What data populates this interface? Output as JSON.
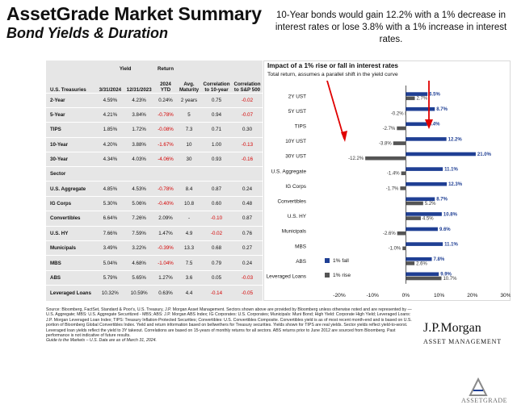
{
  "page": {
    "title": "AssetGrade Market Summary",
    "subtitle": "Bond Yields & Duration",
    "note": "10-Year bonds would gain 12.2% with a 1% decrease in interest rates or lose 3.8% with a 1% increase in interest rates.",
    "source": "Source: Bloomberg, FactSet, Standard & Poor's, U.S. Treasury, J.P. Morgan Asset Management. Sectors shown above are provided by Bloomberg unless otherwise noted and are represented by — U.S. Aggregate; MBS: U.S. Aggregate Securitized - MBS; ABS: J.P. Morgan ABS Index; IG Corporates: U.S. Corporates; Municipals: Muni Bond; High Yield: Corporate High Yield; Leveraged Loans: J.P. Morgan Leveraged Loan Index; TIPS: Treasury Inflation-Protected Securities; Convertibles: U.S. Convertibles Composite. Convertibles yield is as of most recent month-end and is based on U.S. portion of Bloomberg Global Convertibles Index. Yield and return information based on bellwethers for Treasury securities. Yields shown for TIPS are real yields. Sector yields reflect yield-to-worst. Leveraged loan yields reflect the yield to 3Y takeout. Correlations are based on 15-years of monthly returns for all sectors. ABS returns prior to June 2012 are sourced from Bloomberg. Past performance is not indicative of future results.",
    "guide": "Guide to the Markets – U.S. Data are as of March 31, 2024.",
    "brand": "J.P.Morgan",
    "brand_sub": "ASSET MANAGEMENT",
    "logo_text": "ASSETGRADE"
  },
  "table": {
    "header": {
      "yield": "Yield",
      "return": "Return",
      "group1": "U.S. Treasuries",
      "d1": "3/31/2024",
      "d2": "12/31/2023",
      "ytd": "2024 YTD",
      "maturity": "Avg. Maturity",
      "corr10": "Correlation to 10-year",
      "corrsp": "Correlation to S&P 500",
      "group2": "Sector"
    },
    "treasuries": [
      {
        "name": "2-Year",
        "y1": "4.59%",
        "y2": "4.23%",
        "ret": "0.24%",
        "mat": "2 years",
        "c10": "0.75",
        "csp": "-0.02"
      },
      {
        "name": "5-Year",
        "y1": "4.21%",
        "y2": "3.84%",
        "ret": "-0.78%",
        "mat": "5",
        "c10": "0.94",
        "csp": "-0.07"
      },
      {
        "name": "TIPS",
        "y1": "1.85%",
        "y2": "1.72%",
        "ret": "-0.08%",
        "mat": "7.3",
        "c10": "0.71",
        "csp": "0.30"
      },
      {
        "name": "10-Year",
        "y1": "4.20%",
        "y2": "3.88%",
        "ret": "-1.67%",
        "mat": "10",
        "c10": "1.00",
        "csp": "-0.13"
      },
      {
        "name": "30-Year",
        "y1": "4.34%",
        "y2": "4.03%",
        "ret": "-4.06%",
        "mat": "30",
        "c10": "0.93",
        "csp": "-0.16"
      }
    ],
    "sectors": [
      {
        "name": "U.S. Aggregate",
        "y1": "4.85%",
        "y2": "4.53%",
        "ret": "-0.78%",
        "mat": "8.4",
        "c10": "0.87",
        "csp": "0.24"
      },
      {
        "name": "IG Corps",
        "y1": "5.30%",
        "y2": "5.06%",
        "ret": "-0.40%",
        "mat": "10.8",
        "c10": "0.60",
        "csp": "0.48"
      },
      {
        "name": "Convertibles",
        "y1": "6.64%",
        "y2": "7.26%",
        "ret": "2.09%",
        "mat": "-",
        "c10": "-0.10",
        "csp": "0.87"
      },
      {
        "name": "U.S. HY",
        "y1": "7.66%",
        "y2": "7.59%",
        "ret": "1.47%",
        "mat": "4.9",
        "c10": "-0.02",
        "csp": "0.76"
      },
      {
        "name": "Municipals",
        "y1": "3.49%",
        "y2": "3.22%",
        "ret": "-0.39%",
        "mat": "13.3",
        "c10": "0.68",
        "csp": "0.27"
      },
      {
        "name": "MBS",
        "y1": "5.04%",
        "y2": "4.68%",
        "ret": "-1.04%",
        "mat": "7.5",
        "c10": "0.79",
        "csp": "0.24"
      },
      {
        "name": "ABS",
        "y1": "5.79%",
        "y2": "5.65%",
        "ret": "1.27%",
        "mat": "3.6",
        "c10": "0.05",
        "csp": "-0.03"
      },
      {
        "name": "Leveraged Loans",
        "y1": "10.32%",
        "y2": "10.59%",
        "ret": "0.63%",
        "mat": "4.4",
        "c10": "-0.14",
        "csp": "-0.05"
      }
    ]
  },
  "chart_data": {
    "type": "bar",
    "orientation": "horizontal",
    "title": "Impact of a 1% rise or fall in interest rates",
    "subtitle": "Total return, assumes a parallel shift in the yield curve",
    "categories": [
      "2Y UST",
      "5Y UST",
      "TIPS",
      "10Y UST",
      "30Y UST",
      "U.S. Aggregate",
      "IG Corps",
      "Convertibles",
      "U.S. HY",
      "Municipals",
      "MBS",
      "ABS",
      "Leveraged Loans"
    ],
    "series": [
      {
        "name": "1% fall",
        "color": "#1f3f94",
        "values": [
          6.5,
          8.7,
          6.4,
          12.2,
          21.0,
          11.1,
          12.3,
          8.7,
          10.8,
          9.6,
          11.1,
          7.8,
          9.9
        ]
      },
      {
        "name": "1% rise",
        "color": "#555555",
        "values": [
          2.7,
          -0.2,
          -2.7,
          -3.8,
          -12.2,
          -1.4,
          -1.7,
          5.2,
          4.5,
          -2.6,
          -1.0,
          2.6,
          10.7
        ]
      }
    ],
    "x_ticks": [
      "-20%",
      "-10%",
      "0%",
      "10%",
      "20%",
      "30%"
    ],
    "xlim": [
      -20,
      30
    ],
    "legend_position": "bottom-left",
    "annotation_color": "#e00000"
  }
}
